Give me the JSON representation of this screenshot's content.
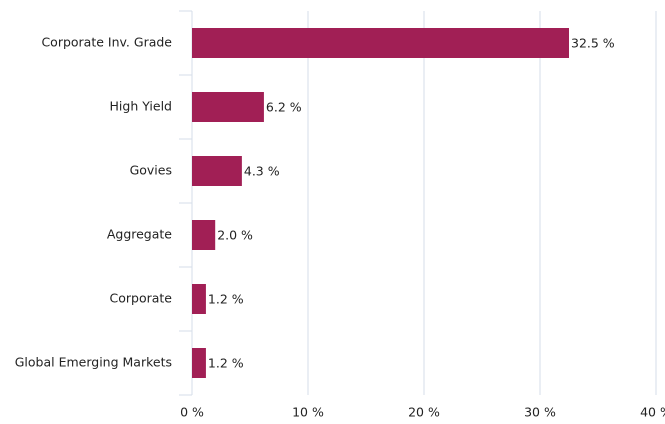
{
  "chart_data": {
    "type": "bar",
    "orientation": "horizontal",
    "categories": [
      "Corporate Inv. Grade",
      "High Yield",
      "Govies",
      "Aggregate",
      "Corporate",
      "Global Emerging Markets"
    ],
    "values": [
      32.5,
      6.2,
      4.3,
      2.0,
      1.2,
      1.2
    ],
    "value_labels": [
      "32.5 %",
      "6.2 %",
      "4.3 %",
      "2.0 %",
      "1.2 %",
      "1.2 %"
    ],
    "color": "#a11f55",
    "xlim": [
      0,
      40
    ],
    "xticks": [
      {
        "value": 0,
        "label": "0 %"
      },
      {
        "value": 10,
        "label": "10 %"
      },
      {
        "value": 20,
        "label": "20 %"
      },
      {
        "value": 30,
        "label": "30 %"
      },
      {
        "value": 40,
        "label": "40 %"
      }
    ],
    "grid": true
  }
}
